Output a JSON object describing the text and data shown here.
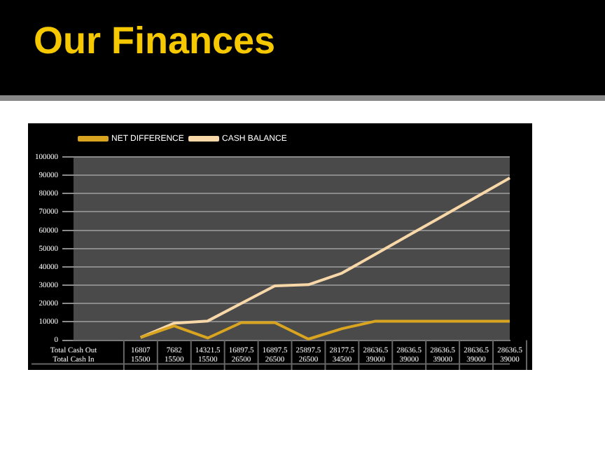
{
  "chart_data": {
    "type": "line",
    "title": "Our Finances",
    "categories": [
      "Total Cash Out\nTotal Cash In",
      null,
      "16807\n15500",
      "7682\n15500",
      "14321.5\n15500",
      "16897.5\n26500",
      "16897.5\n26500",
      "25897.5\n26500",
      "28177.5\n34500",
      "28636.5\n39000",
      "28636.5\n39000",
      "28636.5\n39000",
      "28636.5\n39000",
      "28636.5\n39000"
    ],
    "series": [
      {
        "name": "NET DIFFERENCE",
        "color": "#d9a520",
        "values": [
          null,
          null,
          1500,
          7800,
          1200,
          9600,
          9600,
          600,
          6300,
          10400,
          10400,
          10400,
          10400,
          10400
        ]
      },
      {
        "name": "CASH BALANCE",
        "color": "#f8d8a8",
        "values": [
          null,
          null,
          1500,
          9300,
          10500,
          20100,
          29700,
          30300,
          36600,
          47000,
          57400,
          67700,
          78100,
          88500
        ]
      }
    ],
    "ylim": [
      0,
      100000
    ],
    "yticks": [
      0,
      10000,
      20000,
      30000,
      40000,
      50000,
      60000,
      70000,
      80000,
      90000,
      100000
    ],
    "grid": "y",
    "legend": "top left",
    "marker": "none",
    "line_style": "solid"
  }
}
